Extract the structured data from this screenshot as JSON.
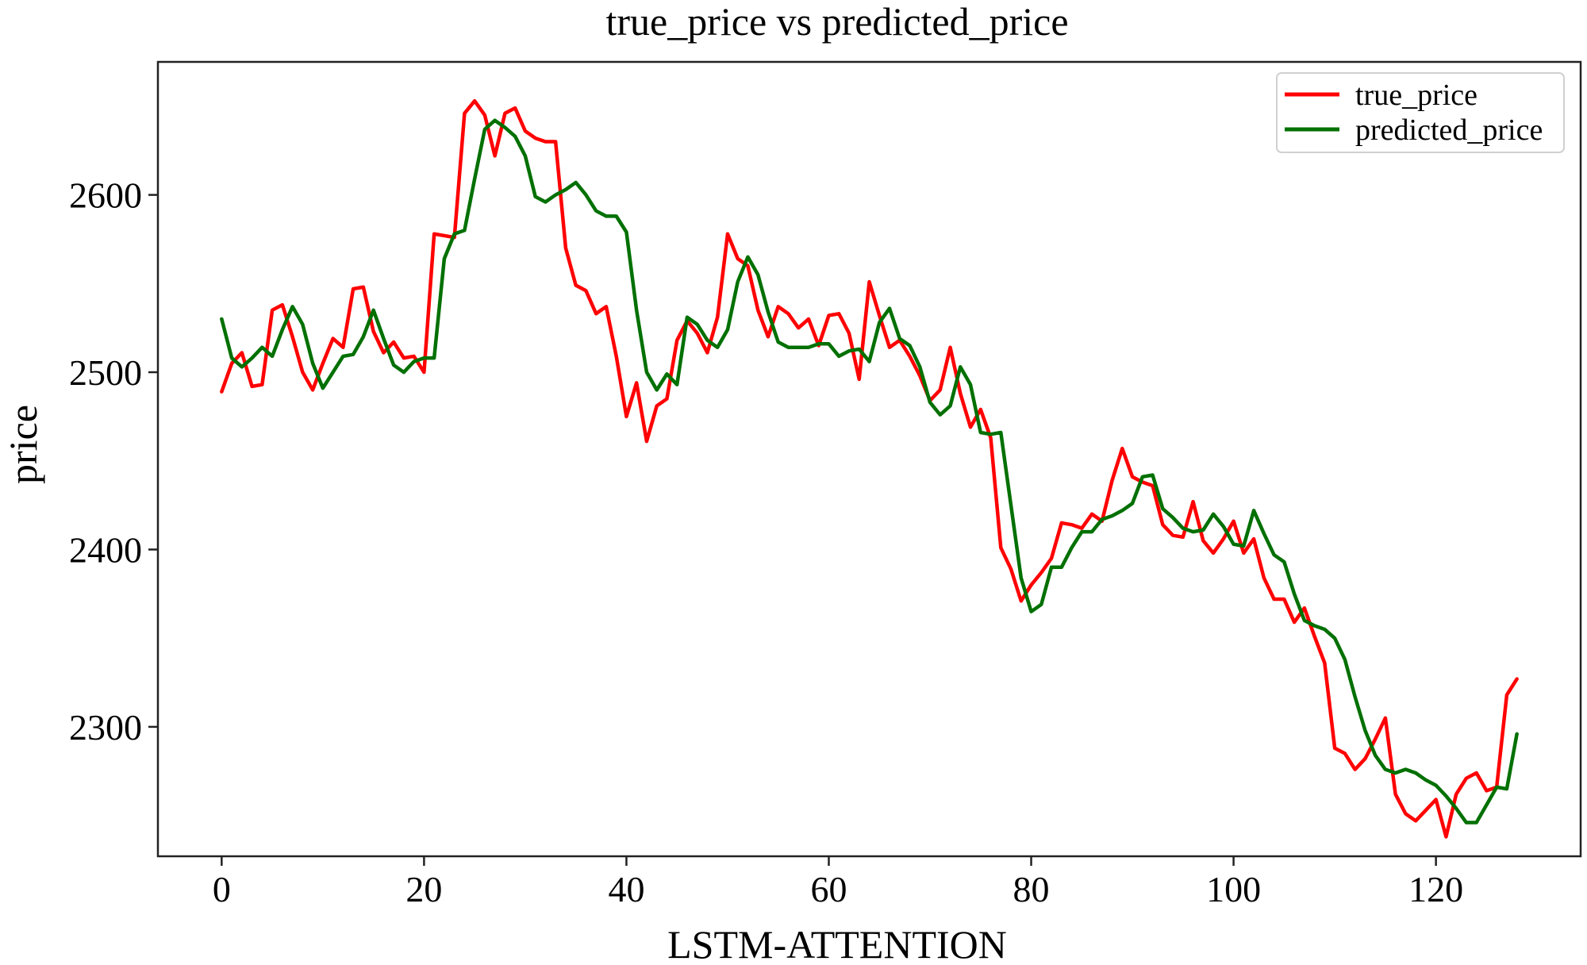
{
  "chart_data": {
    "type": "line",
    "title": "true_price vs predicted_price",
    "xlabel": "LSTM-ATTENTION",
    "ylabel": "price",
    "xlim": [
      -6.3,
      134.3
    ],
    "ylim": [
      2227,
      2675
    ],
    "xticks": [
      0,
      20,
      40,
      60,
      80,
      100,
      120
    ],
    "yticks": [
      2300,
      2400,
      2500,
      2600
    ],
    "xtick_labels": [
      "0",
      "20",
      "40",
      "60",
      "80",
      "100",
      "120"
    ],
    "ytick_labels": [
      "2300",
      "2400",
      "2500",
      "2600"
    ],
    "legend": {
      "position": "top-right",
      "entries": [
        "true_price",
        "predicted_price"
      ]
    },
    "grid": false,
    "series": [
      {
        "name": "true_price",
        "color": "#ff0000",
        "values": [
          2489,
          2505,
          2511,
          2492,
          2493,
          2535,
          2538,
          2520,
          2500,
          2490,
          2505,
          2519,
          2514,
          2547,
          2548,
          2523,
          2511,
          2517,
          2508,
          2509,
          2500,
          2578,
          2577,
          2576,
          2646,
          2653,
          2645,
          2622,
          2646,
          2649,
          2636,
          2632,
          2630,
          2630,
          2570,
          2549,
          2546,
          2533,
          2537,
          2509,
          2475,
          2494,
          2461,
          2481,
          2485,
          2518,
          2529,
          2522,
          2511,
          2531,
          2578,
          2564,
          2560,
          2535,
          2520,
          2537,
          2533,
          2525,
          2530,
          2515,
          2532,
          2533,
          2522,
          2496,
          2551,
          2532,
          2514,
          2518,
          2509,
          2498,
          2484,
          2490,
          2514,
          2488,
          2469,
          2479,
          2463,
          2401,
          2389,
          2371,
          2380,
          2387,
          2395,
          2415,
          2414,
          2412,
          2420,
          2416,
          2439,
          2457,
          2441,
          2438,
          2436,
          2414,
          2408,
          2407,
          2427,
          2405,
          2398,
          2406,
          2416,
          2398,
          2406,
          2384,
          2372,
          2372,
          2359,
          2367,
          2351,
          2336,
          2288,
          2285,
          2276,
          2282,
          2293,
          2305,
          2262,
          2251,
          2247,
          2253,
          2259,
          2238,
          2262,
          2271,
          2274,
          2264,
          2266,
          2318,
          2327
        ]
      },
      {
        "name": "predicted_price",
        "color": "#007000",
        "values": [
          2530,
          2508,
          2503,
          2508,
          2514,
          2509,
          2524,
          2537,
          2527,
          2505,
          2491,
          2500,
          2509,
          2510,
          2520,
          2535,
          2519,
          2504,
          2500,
          2506,
          2508,
          2508,
          2564,
          2578,
          2580,
          2609,
          2637,
          2642,
          2638,
          2633,
          2622,
          2599,
          2596,
          2600,
          2603,
          2607,
          2600,
          2591,
          2588,
          2588,
          2579,
          2535,
          2500,
          2490,
          2499,
          2493,
          2531,
          2527,
          2518,
          2514,
          2524,
          2551,
          2565,
          2555,
          2534,
          2517,
          2514,
          2514,
          2514,
          2516,
          2516,
          2509,
          2512,
          2513,
          2506,
          2528,
          2536,
          2519,
          2515,
          2503,
          2483,
          2476,
          2481,
          2503,
          2493,
          2466,
          2465,
          2466,
          2425,
          2384,
          2365,
          2369,
          2390,
          2390,
          2401,
          2410,
          2410,
          2417,
          2419,
          2422,
          2426,
          2441,
          2442,
          2423,
          2418,
          2412,
          2410,
          2411,
          2420,
          2413,
          2403,
          2402,
          2422,
          2409,
          2397,
          2393,
          2375,
          2360,
          2357,
          2355,
          2350,
          2338,
          2317,
          2298,
          2284,
          2276,
          2274,
          2276,
          2274,
          2270,
          2267,
          2261,
          2254,
          2246,
          2246,
          2256,
          2266,
          2265,
          2296
        ]
      }
    ]
  }
}
